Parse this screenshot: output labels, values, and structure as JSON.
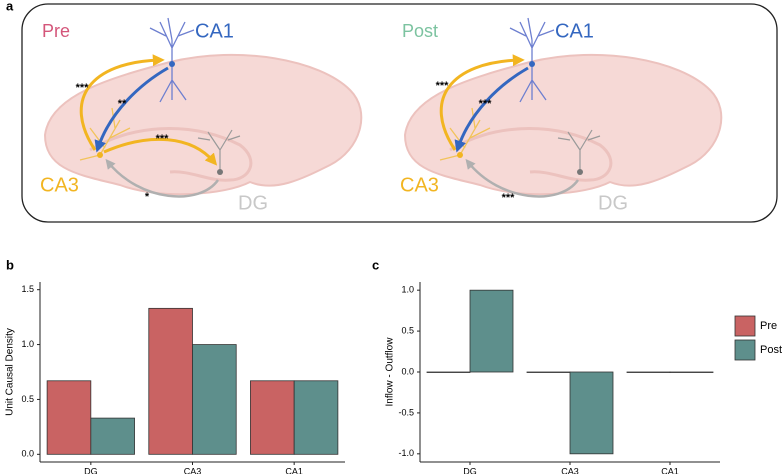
{
  "panel_labels": [
    "a",
    "b",
    "c"
  ],
  "diagram": {
    "panels": [
      {
        "condition": "Pre",
        "regions": {
          "ca1": "CA1",
          "ca3": "CA3",
          "dg": "DG"
        },
        "significance": [
          "***",
          "**",
          "***",
          "*"
        ]
      },
      {
        "condition": "Post",
        "regions": {
          "ca1": "CA1",
          "ca3": "CA3",
          "dg": "DG"
        },
        "significance": [
          "***",
          "***",
          "***"
        ]
      }
    ]
  },
  "chart_data": [
    {
      "type": "bar",
      "ylabel": "Unit Causal Density",
      "categories": [
        "DG",
        "CA3",
        "CA1"
      ],
      "series": [
        {
          "color": "#c96363",
          "values": [
            0.67,
            1.33,
            0.67
          ]
        },
        {
          "color": "#5e8f8c",
          "values": [
            0.33,
            1.0,
            0.67
          ]
        }
      ],
      "ylim": [
        -0.07,
        1.57
      ],
      "yticks": [
        {
          "value": 0,
          "label": "0.0"
        },
        {
          "value": 0.5,
          "label": "0.5"
        },
        {
          "value": 1,
          "label": "1.0"
        },
        {
          "value": 1.5,
          "label": "1.5"
        }
      ]
    },
    {
      "type": "bar",
      "ylabel": "Inflow - Outflow",
      "categories": [
        "DG",
        "CA3",
        "CA1"
      ],
      "series": [
        {
          "name": "Pre",
          "color": "#c96363",
          "values": [
            0,
            0,
            0
          ]
        },
        {
          "name": "Post",
          "color": "#5e8f8c",
          "values": [
            1,
            -1,
            0
          ]
        }
      ],
      "ylim": [
        -1.1,
        1.1
      ],
      "yticks": [
        {
          "value": -1,
          "label": "-1.0"
        },
        {
          "value": -0.5,
          "label": "-0.5"
        },
        {
          "value": 0,
          "label": "0.0"
        },
        {
          "value": 0.5,
          "label": "0.5"
        },
        {
          "value": 1,
          "label": "1.0"
        }
      ],
      "legend": "right"
    }
  ]
}
